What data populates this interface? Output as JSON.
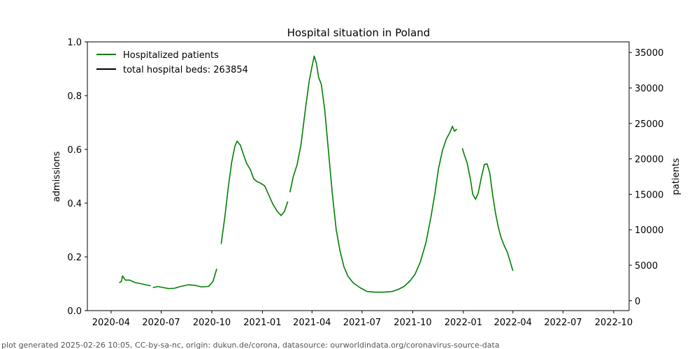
{
  "footer": "plot generated 2025-02-26 10:05, CC-by-sa-nc, origin: dukun.de/corona, datasource: ourworldindata.org/coronavirus-source-data",
  "chart_data": {
    "type": "line",
    "title": "Hospital situation in Poland",
    "xlabel": "",
    "ylabel_left": "admissions",
    "ylabel_right": "patients",
    "x_range": [
      "2020-02-18",
      "2022-10-29"
    ],
    "ylim_left": [
      0.0,
      1.0
    ],
    "ylim_right": [
      -1400,
      36500
    ],
    "x_ticks": [
      "2020-04",
      "2020-07",
      "2020-10",
      "2021-01",
      "2021-04",
      "2021-07",
      "2021-10",
      "2022-01",
      "2022-04",
      "2022-07",
      "2022-10"
    ],
    "y_ticks_left": [
      "0.0",
      "0.2",
      "0.4",
      "0.6",
      "0.8",
      "1.0"
    ],
    "y_ticks_right": [
      "0",
      "5000",
      "10000",
      "15000",
      "20000",
      "25000",
      "30000",
      "35000"
    ],
    "legend_position": "top-left",
    "legend": [
      {
        "label": "Hospitalized patients",
        "color": "#008000"
      },
      {
        "label": "total hospital beds: 263854",
        "color": "#000000"
      }
    ],
    "series": [
      {
        "name": "Hospitalized patients",
        "axis": "right",
        "color": "#008000",
        "segments": [
          [
            [
              "2020-04-16",
              2530
            ],
            [
              "2020-04-20",
              2750
            ],
            [
              "2020-04-22",
              3500
            ],
            [
              "2020-04-27",
              2900
            ],
            [
              "2020-05-05",
              2900
            ],
            [
              "2020-05-15",
              2550
            ],
            [
              "2020-05-25",
              2400
            ],
            [
              "2020-06-05",
              2200
            ],
            [
              "2020-06-12",
              2100
            ]
          ],
          [
            [
              "2020-06-16",
              1850
            ],
            [
              "2020-06-25",
              2000
            ],
            [
              "2020-07-05",
              1850
            ],
            [
              "2020-07-15",
              1700
            ],
            [
              "2020-07-25",
              1750
            ],
            [
              "2020-08-05",
              2000
            ],
            [
              "2020-08-20",
              2250
            ],
            [
              "2020-09-01",
              2150
            ],
            [
              "2020-09-12",
              1950
            ],
            [
              "2020-09-25",
              2000
            ],
            [
              "2020-10-03",
              2700
            ],
            [
              "2020-10-10",
              4500
            ]
          ],
          [
            [
              "2020-10-18",
              8000
            ],
            [
              "2020-10-25",
              12000
            ],
            [
              "2020-10-31",
              16000
            ],
            [
              "2020-11-06",
              19500
            ],
            [
              "2020-11-12",
              21800
            ],
            [
              "2020-11-16",
              22500
            ],
            [
              "2020-11-22",
              21900
            ],
            [
              "2020-11-28",
              20500
            ],
            [
              "2020-12-03",
              19400
            ],
            [
              "2020-12-10",
              18500
            ],
            [
              "2020-12-16",
              17200
            ],
            [
              "2020-12-22",
              16800
            ],
            [
              "2020-12-28",
              16600
            ],
            [
              "2021-01-05",
              16200
            ],
            [
              "2021-01-12",
              15000
            ],
            [
              "2021-01-20",
              13600
            ],
            [
              "2021-01-28",
              12600
            ],
            [
              "2021-02-04",
              12000
            ],
            [
              "2021-02-10",
              12600
            ],
            [
              "2021-02-16",
              14000
            ]
          ],
          [
            [
              "2021-02-20",
              15300
            ],
            [
              "2021-02-26",
              17500
            ],
            [
              "2021-03-05",
              19200
            ],
            [
              "2021-03-12",
              22000
            ],
            [
              "2021-03-20",
              27000
            ],
            [
              "2021-03-27",
              31000
            ],
            [
              "2021-04-01",
              33000
            ],
            [
              "2021-04-05",
              34500
            ],
            [
              "2021-04-09",
              33500
            ],
            [
              "2021-04-13",
              31500
            ],
            [
              "2021-04-18",
              30500
            ],
            [
              "2021-04-24",
              27000
            ],
            [
              "2021-05-01",
              21000
            ],
            [
              "2021-05-08",
              15000
            ],
            [
              "2021-05-15",
              10000
            ],
            [
              "2021-05-22",
              7000
            ],
            [
              "2021-05-29",
              4800
            ],
            [
              "2021-06-05",
              3500
            ],
            [
              "2021-06-15",
              2500
            ],
            [
              "2021-06-28",
              1800
            ],
            [
              "2021-07-10",
              1300
            ],
            [
              "2021-07-25",
              1200
            ],
            [
              "2021-08-10",
              1200
            ],
            [
              "2021-08-25",
              1300
            ],
            [
              "2021-09-05",
              1600
            ],
            [
              "2021-09-15",
              2000
            ],
            [
              "2021-09-25",
              2700
            ],
            [
              "2021-10-05",
              3700
            ],
            [
              "2021-10-15",
              5500
            ],
            [
              "2021-10-25",
              8200
            ],
            [
              "2021-11-03",
              11800
            ],
            [
              "2021-11-10",
              15000
            ],
            [
              "2021-11-17",
              18700
            ],
            [
              "2021-11-24",
              21200
            ],
            [
              "2021-12-01",
              22800
            ],
            [
              "2021-12-08",
              23800
            ],
            [
              "2021-12-12",
              24600
            ],
            [
              "2021-12-16",
              23900
            ],
            [
              "2021-12-20",
              24200
            ]
          ],
          [
            [
              "2021-12-30",
              21500
            ],
            [
              "2022-01-03",
              20500
            ],
            [
              "2022-01-08",
              19400
            ],
            [
              "2022-01-14",
              17000
            ],
            [
              "2022-01-18",
              15000
            ],
            [
              "2022-01-23",
              14300
            ],
            [
              "2022-01-28",
              15200
            ],
            [
              "2022-02-03",
              17500
            ],
            [
              "2022-02-08",
              19200
            ],
            [
              "2022-02-13",
              19300
            ],
            [
              "2022-02-18",
              18000
            ],
            [
              "2022-02-23",
              15000
            ],
            [
              "2022-02-28",
              12500
            ],
            [
              "2022-03-05",
              10500
            ],
            [
              "2022-03-10",
              9000
            ],
            [
              "2022-03-16",
              7800
            ],
            [
              "2022-03-22",
              6800
            ],
            [
              "2022-03-27",
              5500
            ],
            [
              "2022-04-01",
              4200
            ]
          ]
        ]
      }
    ]
  }
}
